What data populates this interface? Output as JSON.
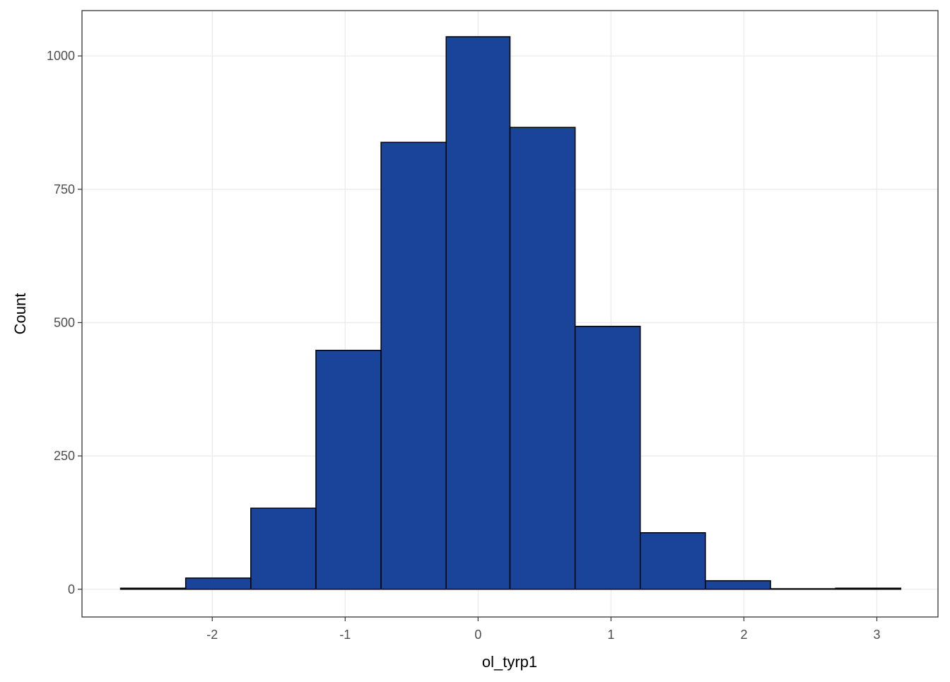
{
  "chart_data": {
    "type": "histogram",
    "x_label": "ol_tyrp1",
    "y_label": "Count",
    "bins": [
      -2.69,
      -2.2,
      -1.71,
      -1.22,
      -0.73,
      -0.24,
      0.24,
      0.73,
      1.22,
      1.71,
      2.2,
      2.69,
      3.18
    ],
    "values": [
      2,
      21,
      152,
      448,
      838,
      1036,
      866,
      493,
      106,
      16,
      1,
      2
    ],
    "color": "#1a4499",
    "xlim": [
      -2.98,
      3.46
    ],
    "ylim": [
      -52,
      1085
    ],
    "xticks": [
      -2,
      -1,
      0,
      1,
      2,
      3
    ],
    "yticks": [
      0,
      250,
      500,
      750,
      1000
    ],
    "grid": true
  }
}
